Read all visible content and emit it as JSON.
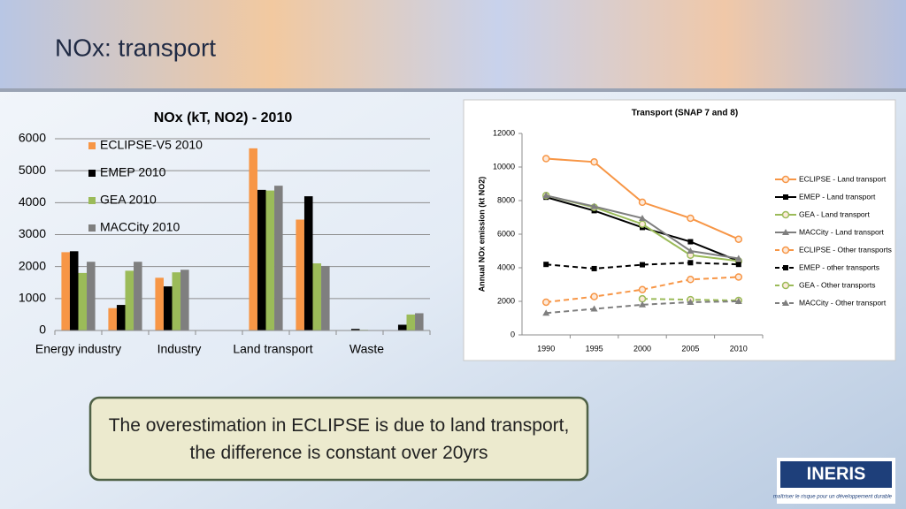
{
  "slide": {
    "title": "NOx: transport",
    "note": "The overestimation in ECLIPSE is due to land transport, the difference is constant over 20yrs",
    "logo": "INERIS",
    "tagline": "maîtriser le risque pour un développement durable"
  },
  "chart_data": [
    {
      "type": "bar",
      "title": "NOx (kT, NO2) - 2010",
      "categories": [
        "Energy industry",
        null,
        "Industry",
        null,
        "Land transport",
        null,
        "Waste",
        null
      ],
      "series": [
        {
          "name": "ECLIPSE-V5 2010",
          "color": "#f79646",
          "values": [
            2450,
            700,
            1650,
            0,
            5700,
            3470,
            0,
            0
          ]
        },
        {
          "name": "EMEP 2010",
          "color": "#000000",
          "values": [
            2480,
            800,
            1380,
            0,
            4400,
            4200,
            50,
            180
          ]
        },
        {
          "name": "GEA 2010",
          "color": "#9bbb59",
          "values": [
            1800,
            1870,
            1820,
            0,
            4380,
            2100,
            20,
            500
          ]
        },
        {
          "name": "MACCity 2010",
          "color": "#7f7f7f",
          "values": [
            2150,
            2150,
            1900,
            0,
            4530,
            2020,
            10,
            540
          ]
        }
      ],
      "ylim": [
        0,
        6000
      ],
      "yticks": [
        0,
        1000,
        2000,
        3000,
        4000,
        5000,
        6000
      ],
      "grid": true,
      "legend": "top-left"
    },
    {
      "type": "line",
      "title": "Transport (SNAP 7 and 8)",
      "y_label": "Annual NOx emission (kt NO2)",
      "categories": [
        "1990",
        "1995",
        "2000",
        "2005",
        "2010"
      ],
      "series": [
        {
          "name": "ECLIPSE - Land transport",
          "color": "#f79646",
          "dash": false,
          "marker": "circle",
          "values": [
            10500,
            10300,
            7900,
            6950,
            5700
          ]
        },
        {
          "name": "EMEP - Land transport",
          "color": "#000000",
          "dash": false,
          "marker": "square",
          "values": [
            8200,
            7400,
            6400,
            5550,
            4400
          ]
        },
        {
          "name": "GEA  - Land transport",
          "color": "#9bbb59",
          "dash": false,
          "marker": "circle",
          "values": [
            8300,
            7600,
            6600,
            4750,
            4400
          ]
        },
        {
          "name": "MACCity - Land transport",
          "color": "#7f7f7f",
          "dash": false,
          "marker": "triangle",
          "values": [
            8300,
            7650,
            6950,
            5000,
            4550
          ]
        },
        {
          "name": "ECLIPSE - Other transports",
          "color": "#f79646",
          "dash": true,
          "marker": "circle",
          "values": [
            1950,
            2280,
            2700,
            3300,
            3450
          ]
        },
        {
          "name": "EMEP - other transports",
          "color": "#000000",
          "dash": true,
          "marker": "square",
          "values": [
            4200,
            3950,
            4180,
            4300,
            4200
          ]
        },
        {
          "name": "GEA - Other transports",
          "color": "#9bbb59",
          "dash": true,
          "marker": "circle",
          "values": [
            null,
            null,
            2150,
            2100,
            2050
          ]
        },
        {
          "name": "MACCity - Other transport",
          "color": "#7f7f7f",
          "dash": true,
          "marker": "triangle",
          "values": [
            1300,
            1550,
            1800,
            1950,
            2000
          ]
        }
      ],
      "ylim": [
        0,
        12000
      ],
      "yticks": [
        0,
        2000,
        4000,
        6000,
        8000,
        10000,
        12000
      ],
      "grid": false,
      "legend": "right"
    }
  ]
}
